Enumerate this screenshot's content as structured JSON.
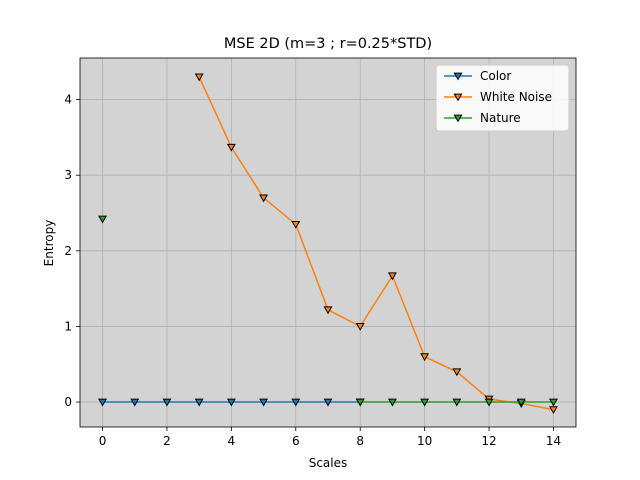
{
  "chart_data": {
    "type": "line",
    "title": "MSE 2D (m=3 ; r=0.25*STD)",
    "xlabel": "Scales",
    "ylabel": "Entropy",
    "xlim": [
      -0.7,
      14.7
    ],
    "ylim": [
      -0.33,
      4.55
    ],
    "xticks": [
      0,
      2,
      4,
      6,
      8,
      10,
      12,
      14
    ],
    "yticks": [
      0,
      1,
      2,
      3,
      4
    ],
    "grid": true,
    "legend_position": "top-right",
    "plot_background": "#d3d3d3",
    "series": [
      {
        "name": "Color",
        "color": "#1f77b4",
        "x": [
          0,
          1,
          2,
          3,
          4,
          5,
          6,
          7,
          8
        ],
        "y": [
          0,
          0,
          0,
          0,
          0,
          0,
          0,
          0,
          0
        ]
      },
      {
        "name": "White Noise",
        "color": "#ff7f0e",
        "x": [
          3,
          4,
          5,
          6,
          7,
          8,
          9,
          10,
          11,
          12,
          13,
          14
        ],
        "y": [
          4.3,
          3.37,
          2.7,
          2.35,
          1.22,
          1.0,
          1.67,
          0.6,
          0.4,
          0.04,
          -0.02,
          -0.1
        ]
      },
      {
        "name": "Nature",
        "color": "#2ca02c",
        "x": [
          0,
          8,
          9,
          10,
          11,
          12,
          13,
          14
        ],
        "y": [
          2.42,
          0,
          0,
          0,
          0,
          0,
          0,
          0
        ],
        "segments": [
          [
            0
          ],
          [
            8,
            9,
            10,
            11,
            12,
            13,
            14
          ]
        ]
      }
    ]
  }
}
